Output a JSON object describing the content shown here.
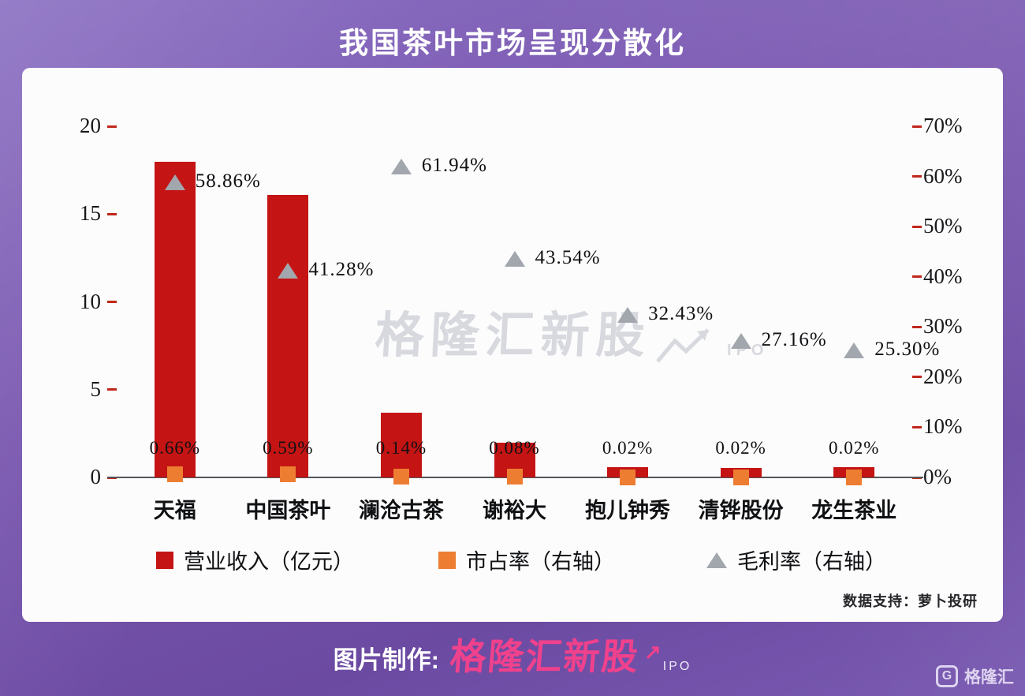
{
  "page": {
    "title": "我国茶叶市场呈现分散化",
    "watermark": "格隆汇新股",
    "watermark_sub": "IPO",
    "data_support": "数据支持：萝卜投研",
    "footer_prefix": "图片制作:",
    "footer_brand": "格隆汇新股",
    "footer_arrow": "↗",
    "footer_brand_sub": "IPO",
    "corner_logo_letter": "G",
    "corner_logo_text": "格隆汇"
  },
  "colors": {
    "bar_red": "#c41414",
    "marker_orange": "#ed7d31",
    "marker_gray": "#a2a6ad",
    "axis_tick_red": "#c0271b",
    "brand_pink": "#f0418c",
    "background_purple": "#7457a8"
  },
  "chart_data": {
    "type": "bar",
    "title": "我国茶叶市场呈现分散化",
    "categories": [
      "天福",
      "中国茶叶",
      "澜沧古茶",
      "谢裕大",
      "抱儿钟秀",
      "清铧股份",
      "龙生茶业"
    ],
    "series": [
      {
        "name": "营业收入（亿元）",
        "type": "bar",
        "axis": "left",
        "values": [
          18.0,
          16.1,
          3.7,
          2.0,
          0.6,
          0.55,
          0.6
        ]
      },
      {
        "name": "市占率（右轴）",
        "type": "scatter",
        "marker": "square",
        "axis": "right",
        "values": [
          0.66,
          0.59,
          0.14,
          0.08,
          0.02,
          0.02,
          0.02
        ],
        "labels": [
          "0.66%",
          "0.59%",
          "0.14%",
          "0.08%",
          "0.02%",
          "0.02%",
          "0.02%"
        ]
      },
      {
        "name": "毛利率（右轴）",
        "type": "scatter",
        "marker": "triangle",
        "axis": "right",
        "values": [
          58.86,
          41.28,
          61.94,
          43.54,
          32.43,
          27.16,
          25.3
        ],
        "labels": [
          "58.86%",
          "41.28%",
          "61.94%",
          "43.54%",
          "32.43%",
          "27.16%",
          "25.30%"
        ]
      }
    ],
    "left_axis": {
      "ticks": [
        0,
        5,
        10,
        15,
        20
      ],
      "range": [
        0,
        20
      ]
    },
    "right_axis": {
      "ticks": [
        "0%",
        "10%",
        "20%",
        "30%",
        "40%",
        "50%",
        "60%",
        "70%"
      ],
      "range": [
        0,
        70
      ]
    },
    "legend_position": "bottom",
    "grid": false
  }
}
